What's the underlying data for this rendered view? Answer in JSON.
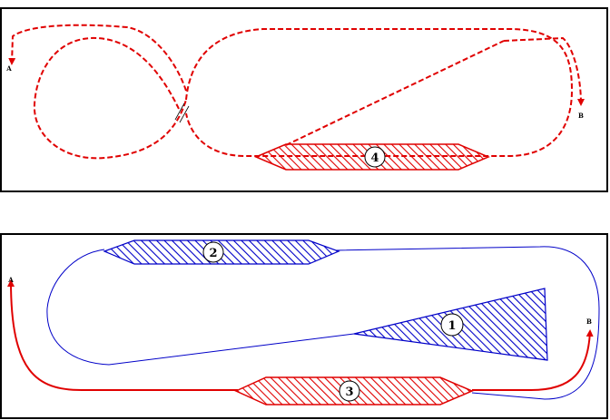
{
  "colors": {
    "red": "#e00000",
    "blue": "#0000c8",
    "frame": "#000000"
  },
  "top_panel": {
    "endpoint_a": "A",
    "endpoint_b": "B",
    "section_label": "4"
  },
  "bottom_panel": {
    "endpoint_a": "A",
    "endpoint_b": "B",
    "section_labels": {
      "s1": "1",
      "s2": "2",
      "s3": "3"
    }
  }
}
